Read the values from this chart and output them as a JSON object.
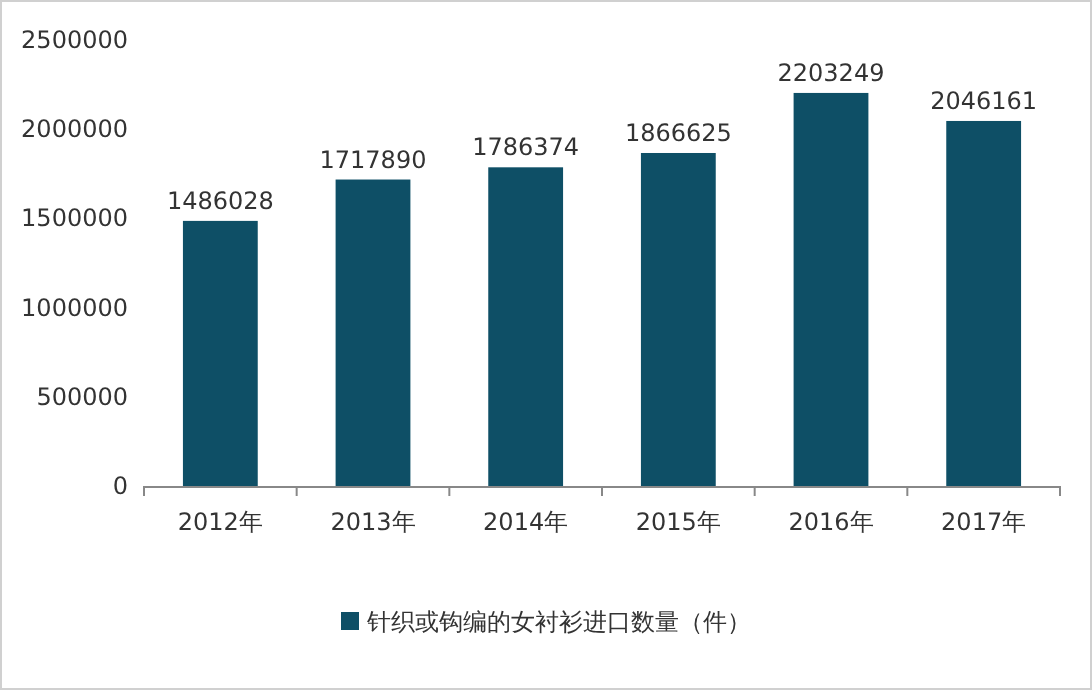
{
  "chart_data": {
    "type": "bar",
    "categories": [
      "2012年",
      "2013年",
      "2014年",
      "2015年",
      "2016年",
      "2017年"
    ],
    "series": [
      {
        "name": "针织或钩编的女衬衫进口数量（件）",
        "color": "#0e4f66",
        "values": [
          1486028,
          1717890,
          1786374,
          1866625,
          2203249,
          2046161
        ]
      }
    ],
    "ylim": [
      0,
      2500000
    ],
    "yticks": [
      0,
      500000,
      1000000,
      1500000,
      2000000,
      2500000
    ],
    "data_labels": true,
    "legend": "bottom"
  }
}
